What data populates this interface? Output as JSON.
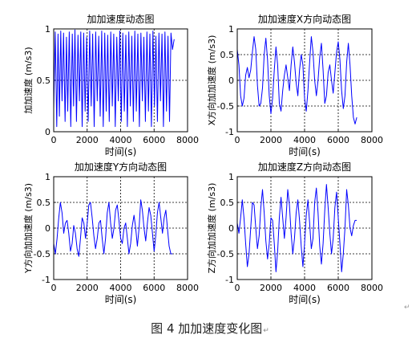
{
  "chart_data": [
    {
      "type": "line",
      "title": "加加速度动态图",
      "xlabel": "时间(s)",
      "ylabel": "加加速度 (m/s3)",
      "xlim": [
        0,
        8000
      ],
      "ylim": [
        0,
        1
      ],
      "xticks": [
        0,
        2000,
        4000,
        6000,
        8000
      ],
      "yticks": [
        0,
        0.5,
        1
      ],
      "grid": true,
      "series": [
        {
          "color": "#0000ff",
          "x": [
            0,
            90,
            180,
            260,
            340,
            420,
            500,
            590,
            680,
            760,
            840,
            930,
            1020,
            1110,
            1190,
            1270,
            1360,
            1450,
            1540,
            1620,
            1700,
            1790,
            1880,
            1970,
            2060,
            2150,
            2240,
            2330,
            2420,
            2510,
            2600,
            2690,
            2780,
            2870,
            2960,
            3050,
            3140,
            3230,
            3320,
            3410,
            3500,
            3590,
            3680,
            3770,
            3860,
            3950,
            4040,
            4130,
            4220,
            4310,
            4400,
            4490,
            4580,
            4670,
            4760,
            4850,
            4940,
            5030,
            5120,
            5210,
            5300,
            5390,
            5480,
            5570,
            5660,
            5750,
            5840,
            5930,
            6020,
            6110,
            6200,
            6290,
            6380,
            6470,
            6560,
            6650,
            6740,
            6830,
            6920,
            7010,
            7100,
            7200
          ],
          "y": [
            0.22,
            0.97,
            0.05,
            0.95,
            0.15,
            0.98,
            0.3,
            0.96,
            0.1,
            0.92,
            0.2,
            0.97,
            0.05,
            0.95,
            0.25,
            0.99,
            0.1,
            0.94,
            0.3,
            0.97,
            0.05,
            0.96,
            0.2,
            0.92,
            0.1,
            0.98,
            0.25,
            0.95,
            0.05,
            0.97,
            0.3,
            0.93,
            0.15,
            0.98,
            0.05,
            0.96,
            0.2,
            0.94,
            0.1,
            0.97,
            0.25,
            0.95,
            0.05,
            0.92,
            0.3,
            0.98,
            0.1,
            0.96,
            0.2,
            0.94,
            0.05,
            0.97,
            0.25,
            0.93,
            0.1,
            0.98,
            0.2,
            0.95,
            0.05,
            0.96,
            0.3,
            0.92,
            0.1,
            0.97,
            0.2,
            0.95,
            0.05,
            0.98,
            0.25,
            0.93,
            0.1,
            0.96,
            0.3,
            0.95,
            0.05,
            0.97,
            0.2,
            0.93,
            0.1,
            0.96,
            0.8,
            0.9
          ]
        }
      ]
    },
    {
      "type": "line",
      "title": "加加速度X方向动态图",
      "xlabel": "时间(s)",
      "ylabel": "X方向加加速度 (m/s3)",
      "xlim": [
        0,
        8000
      ],
      "ylim": [
        -1,
        1
      ],
      "xticks": [
        0,
        2000,
        4000,
        6000,
        8000
      ],
      "yticks": [
        -1,
        -0.5,
        0,
        0.5,
        1
      ],
      "grid": true,
      "series": [
        {
          "color": "#0000ff",
          "x": [
            0,
            100,
            200,
            300,
            400,
            500,
            600,
            700,
            800,
            900,
            1000,
            1100,
            1200,
            1300,
            1400,
            1500,
            1600,
            1700,
            1800,
            1900,
            2000,
            2100,
            2200,
            2300,
            2400,
            2500,
            2600,
            2700,
            2800,
            2900,
            3000,
            3100,
            3200,
            3300,
            3400,
            3500,
            3600,
            3700,
            3800,
            3900,
            4000,
            4100,
            4200,
            4300,
            4400,
            4500,
            4600,
            4700,
            4800,
            4900,
            5000,
            5100,
            5200,
            5300,
            5400,
            5500,
            5600,
            5700,
            5800,
            5900,
            6000,
            6100,
            6200,
            6300,
            6400,
            6500,
            6600,
            6700,
            6800,
            6900,
            7000,
            7100
          ],
          "y": [
            0.6,
            0.3,
            -0.3,
            -0.5,
            -0.35,
            0.1,
            0.25,
            0.05,
            0.2,
            0.55,
            0.85,
            0.6,
            -0.1,
            -0.5,
            -0.45,
            -0.15,
            0.5,
            0.82,
            0.4,
            -0.3,
            -0.65,
            -0.35,
            0.2,
            0.65,
            0.3,
            -0.45,
            -0.6,
            -0.2,
            0.1,
            0.3,
            0.05,
            -0.2,
            0.3,
            0.65,
            0.35,
            -0.05,
            -0.3,
            0.2,
            0.5,
            0.3,
            -0.35,
            -0.6,
            -0.2,
            0.35,
            0.85,
            0.55,
            0.0,
            -0.3,
            0.0,
            0.45,
            0.72,
            0.2,
            -0.45,
            -0.3,
            0.15,
            0.3,
            0.0,
            -0.25,
            0.15,
            0.55,
            0.75,
            0.4,
            -0.2,
            -0.55,
            -0.3,
            0.35,
            0.72,
            0.3,
            -0.3,
            -0.72,
            -0.85,
            -0.72
          ]
        }
      ]
    },
    {
      "type": "line",
      "title": "加加速度Y方向动态图",
      "xlabel": "时间(s)",
      "ylabel": "Y方向加加速度 (m/s3)",
      "xlim": [
        0,
        8000
      ],
      "ylim": [
        -1,
        1
      ],
      "xticks": [
        0,
        2000,
        4000,
        6000,
        8000
      ],
      "yticks": [
        -1,
        -0.5,
        0,
        0.5,
        1
      ],
      "grid": true,
      "series": [
        {
          "color": "#0000ff",
          "x": [
            0,
            100,
            200,
            300,
            400,
            500,
            600,
            700,
            800,
            900,
            1000,
            1100,
            1200,
            1300,
            1400,
            1500,
            1600,
            1700,
            1800,
            1900,
            2000,
            2100,
            2200,
            2300,
            2400,
            2500,
            2600,
            2700,
            2800,
            2900,
            3000,
            3100,
            3200,
            3300,
            3400,
            3500,
            3600,
            3700,
            3800,
            3900,
            4000,
            4100,
            4200,
            4300,
            4400,
            4500,
            4600,
            4700,
            4800,
            4900,
            5000,
            5100,
            5200,
            5300,
            5400,
            5500,
            5600,
            5700,
            5800,
            5900,
            6000,
            6100,
            6200,
            6300,
            6400,
            6500,
            6600,
            6700,
            6800,
            6900,
            7000,
            7100
          ],
          "y": [
            -0.3,
            -0.5,
            -0.2,
            0.2,
            0.5,
            0.3,
            -0.1,
            0.1,
            0.15,
            -0.1,
            -0.45,
            -0.3,
            0.05,
            -0.1,
            -0.4,
            -0.55,
            -0.2,
            0.2,
            0.1,
            -0.2,
            0.1,
            0.45,
            0.5,
            0.2,
            -0.15,
            -0.4,
            -0.2,
            0.1,
            0.15,
            -0.2,
            -0.5,
            -0.2,
            0.3,
            0.5,
            0.1,
            -0.2,
            0.0,
            0.35,
            0.45,
            0.15,
            -0.2,
            -0.3,
            0.0,
            0.1,
            -0.2,
            -0.5,
            -0.3,
            0.05,
            0.25,
            0.0,
            -0.35,
            0.0,
            0.55,
            0.35,
            0.0,
            -0.25,
            0.1,
            0.4,
            0.25,
            -0.1,
            -0.45,
            -0.15,
            0.3,
            0.5,
            0.2,
            -0.1,
            0.2,
            0.35,
            0.0,
            -0.35,
            -0.5,
            -0.5
          ]
        }
      ]
    },
    {
      "type": "line",
      "title": "加加速度Z方向动态图",
      "xlabel": "时间(s)",
      "ylabel": "Z方向加加速度 (m/s3)",
      "xlim": [
        0,
        8000
      ],
      "ylim": [
        -1,
        1
      ],
      "xticks": [
        0,
        2000,
        4000,
        6000,
        8000
      ],
      "yticks": [
        -1,
        -0.5,
        0,
        0.5,
        1
      ],
      "grid": true,
      "series": [
        {
          "color": "#0000ff",
          "x": [
            0,
            100,
            200,
            300,
            400,
            500,
            600,
            700,
            800,
            900,
            1000,
            1100,
            1200,
            1300,
            1400,
            1500,
            1600,
            1700,
            1800,
            1900,
            2000,
            2100,
            2200,
            2300,
            2400,
            2500,
            2600,
            2700,
            2800,
            2900,
            3000,
            3100,
            3200,
            3300,
            3400,
            3500,
            3600,
            3700,
            3800,
            3900,
            4000,
            4100,
            4200,
            4300,
            4400,
            4500,
            4600,
            4700,
            4800,
            4900,
            5000,
            5100,
            5200,
            5300,
            5400,
            5500,
            5600,
            5700,
            5800,
            5900,
            6000,
            6100,
            6200,
            6300,
            6400,
            6500,
            6600,
            6700,
            6800,
            6900,
            7000,
            7100
          ],
          "y": [
            0.1,
            -0.1,
            0.2,
            0.55,
            0.2,
            -0.3,
            -0.75,
            -0.5,
            0.0,
            0.5,
            0.45,
            0.0,
            -0.4,
            -0.15,
            0.4,
            0.75,
            0.3,
            -0.25,
            -0.6,
            -0.3,
            0.2,
            0.15,
            -0.3,
            -0.85,
            -0.45,
            0.2,
            0.6,
            0.2,
            -0.2,
            0.2,
            0.75,
            0.45,
            -0.1,
            -0.5,
            -0.2,
            0.3,
            0.55,
            0.15,
            -0.35,
            -0.75,
            -0.3,
            0.25,
            0.55,
            0.1,
            -0.4,
            -0.2,
            0.5,
            0.78,
            0.3,
            -0.35,
            -0.7,
            -0.3,
            0.35,
            0.85,
            0.4,
            -0.1,
            -0.5,
            -0.2,
            0.4,
            0.7,
            0.2,
            -0.3,
            -0.85,
            -0.5,
            0.0,
            0.75,
            0.45,
            0.0,
            -0.15,
            0.05,
            0.15,
            0.15
          ]
        }
      ]
    }
  ],
  "caption": {
    "text": "图 4  加加速度变化图",
    "mark": "↵"
  },
  "stray_mark": "↵"
}
